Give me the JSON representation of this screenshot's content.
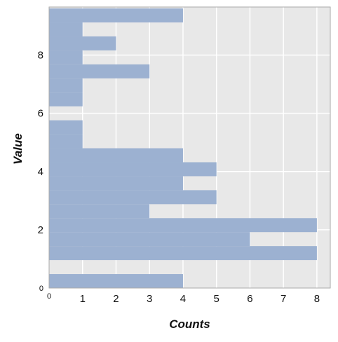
{
  "chart_data": {
    "type": "bar",
    "orientation": "horizontal-histogram",
    "xlabel": "Counts",
    "ylabel": "Value",
    "xlim": [
      0,
      8.4
    ],
    "ylim": [
      0,
      9.65
    ],
    "x_ticks": [
      "0",
      "1",
      "2",
      "3",
      "4",
      "5",
      "6",
      "7",
      "8"
    ],
    "y_ticks": [
      "0",
      "2",
      "4",
      "6",
      "8"
    ],
    "bin_width": 0.48,
    "bins": [
      {
        "y0": 0.0,
        "count": 4
      },
      {
        "y0": 0.96,
        "count": 8
      },
      {
        "y0": 1.44,
        "count": 6
      },
      {
        "y0": 1.92,
        "count": 8
      },
      {
        "y0": 2.4,
        "count": 3
      },
      {
        "y0": 2.88,
        "count": 5
      },
      {
        "y0": 3.36,
        "count": 4
      },
      {
        "y0": 3.84,
        "count": 5
      },
      {
        "y0": 4.32,
        "count": 4
      },
      {
        "y0": 4.8,
        "count": 1
      },
      {
        "y0": 5.28,
        "count": 1
      },
      {
        "y0": 5.76,
        "count": 0
      },
      {
        "y0": 6.24,
        "count": 1
      },
      {
        "y0": 6.72,
        "count": 1
      },
      {
        "y0": 7.2,
        "count": 3
      },
      {
        "y0": 7.68,
        "count": 1
      },
      {
        "y0": 8.16,
        "count": 2
      },
      {
        "y0": 8.64,
        "count": 1
      },
      {
        "y0": 9.12,
        "count": 4
      }
    ],
    "grid": true,
    "colors": {
      "bar": "#9aafd0",
      "panel": "#e8e8e8",
      "grid": "#ffffff",
      "frame": "#aaaaaa"
    }
  }
}
